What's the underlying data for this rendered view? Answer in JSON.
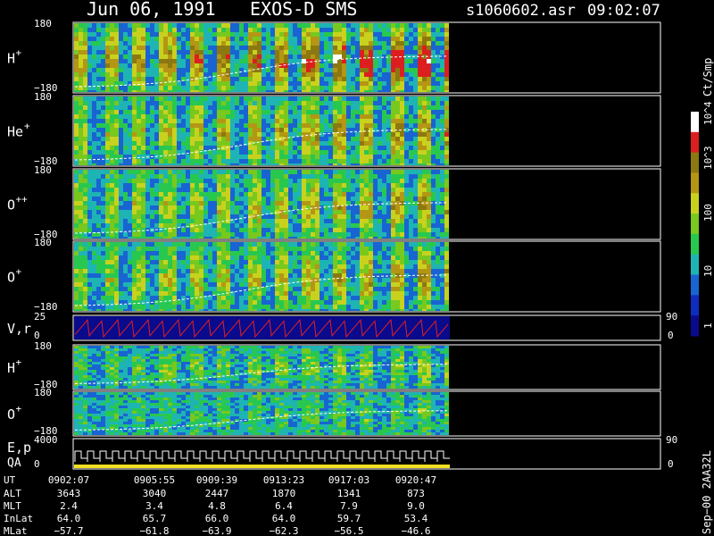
{
  "header": {
    "date": "Jun 06, 1991",
    "mission": "EXOS-D SMS",
    "file": "s1060602.asr",
    "time": "09:02:07"
  },
  "colorbar": {
    "unit": "Ct/Smp",
    "labels": [
      "1",
      "10",
      "100",
      "10^3",
      "10^4"
    ],
    "colors": [
      "#0a0a8c",
      "#0f2cc0",
      "#1864d2",
      "#1eb4b4",
      "#28c850",
      "#78c81e",
      "#c8d21e",
      "#b49614",
      "#8c7810",
      "#dc1e1e",
      "#ffffff"
    ]
  },
  "panels": [
    {
      "id": "h-plus-1",
      "label": "H",
      "sup": "+",
      "ymax": "180",
      "ymin": "−180",
      "intensity": 0.85,
      "red": true
    },
    {
      "id": "he-plus",
      "label": "He",
      "sup": "+",
      "ymax": "180",
      "ymin": "−180",
      "intensity": 0.6,
      "red": false
    },
    {
      "id": "o-plus-plus",
      "label": "O",
      "sup": "++",
      "ymax": "180",
      "ymin": "−180",
      "intensity": 0.55,
      "red": false
    },
    {
      "id": "o-plus-1",
      "label": "O",
      "sup": "+",
      "ymax": "180",
      "ymin": "−180",
      "intensity": 0.55,
      "red": false
    },
    {
      "id": "vr",
      "label": "V,r",
      "sup": "",
      "ymax": "25",
      "ymin": "0",
      "right_top": "90",
      "right_bottom": "0"
    },
    {
      "id": "h-plus-2",
      "label": "H",
      "sup": "+",
      "ymax": "180",
      "ymin": "−180",
      "intensity": 0.35,
      "red": false
    },
    {
      "id": "o-plus-2",
      "label": "O",
      "sup": "+",
      "ymax": "180",
      "ymin": "−180",
      "intensity": 0.25,
      "red": false
    },
    {
      "id": "ep-qa",
      "label": "E,p",
      "label2": "QA",
      "ymax": "4000",
      "ymin": "0",
      "right_top": "90",
      "right_bottom": "0"
    }
  ],
  "footer": {
    "row_labels": [
      "UT",
      "ALT",
      "MLT",
      "InLat",
      "MLat"
    ],
    "columns": [
      {
        "UT": "0902:07",
        "ALT": "3643",
        "MLT": "2.4",
        "InLat": "64.0",
        "MLat": "−57.7"
      },
      {
        "UT": "0905:55",
        "ALT": "3040",
        "MLT": "3.4",
        "InLat": "65.7",
        "MLat": "−61.8"
      },
      {
        "UT": "0909:39",
        "ALT": "2447",
        "MLT": "4.8",
        "InLat": "66.0",
        "MLat": "−63.9"
      },
      {
        "UT": "0913:23",
        "ALT": "1870",
        "MLT": "6.4",
        "InLat": "64.0",
        "MLat": "−62.3"
      },
      {
        "UT": "0917:03",
        "ALT": "1341",
        "MLT": "7.9",
        "InLat": "59.7",
        "MLat": "−56.5"
      },
      {
        "UT": "0920:47",
        "ALT": "873",
        "MLT": "9.0",
        "InLat": "53.4",
        "MLat": "−46.6"
      }
    ],
    "stamp": "Sep−00 2AA32L"
  },
  "chart_data": {
    "type": "heatmap",
    "title": "Jun 06, 1991   EXOS-D SMS",
    "xlabel": "UT",
    "x": [
      "0902:07",
      "0905:55",
      "0909:39",
      "0913:23",
      "0917:03",
      "0920:47"
    ],
    "ylim": [
      -180,
      180
    ],
    "series": [
      {
        "name": "H+"
      },
      {
        "name": "He+"
      },
      {
        "name": "O++"
      },
      {
        "name": "O+"
      },
      {
        "name": "V,r"
      },
      {
        "name": "H+"
      },
      {
        "name": "O+"
      },
      {
        "name": "E,p"
      }
    ],
    "colorbar_unit": "Ct/Smp",
    "colorbar_range": [
      "1",
      "10^4"
    ]
  }
}
